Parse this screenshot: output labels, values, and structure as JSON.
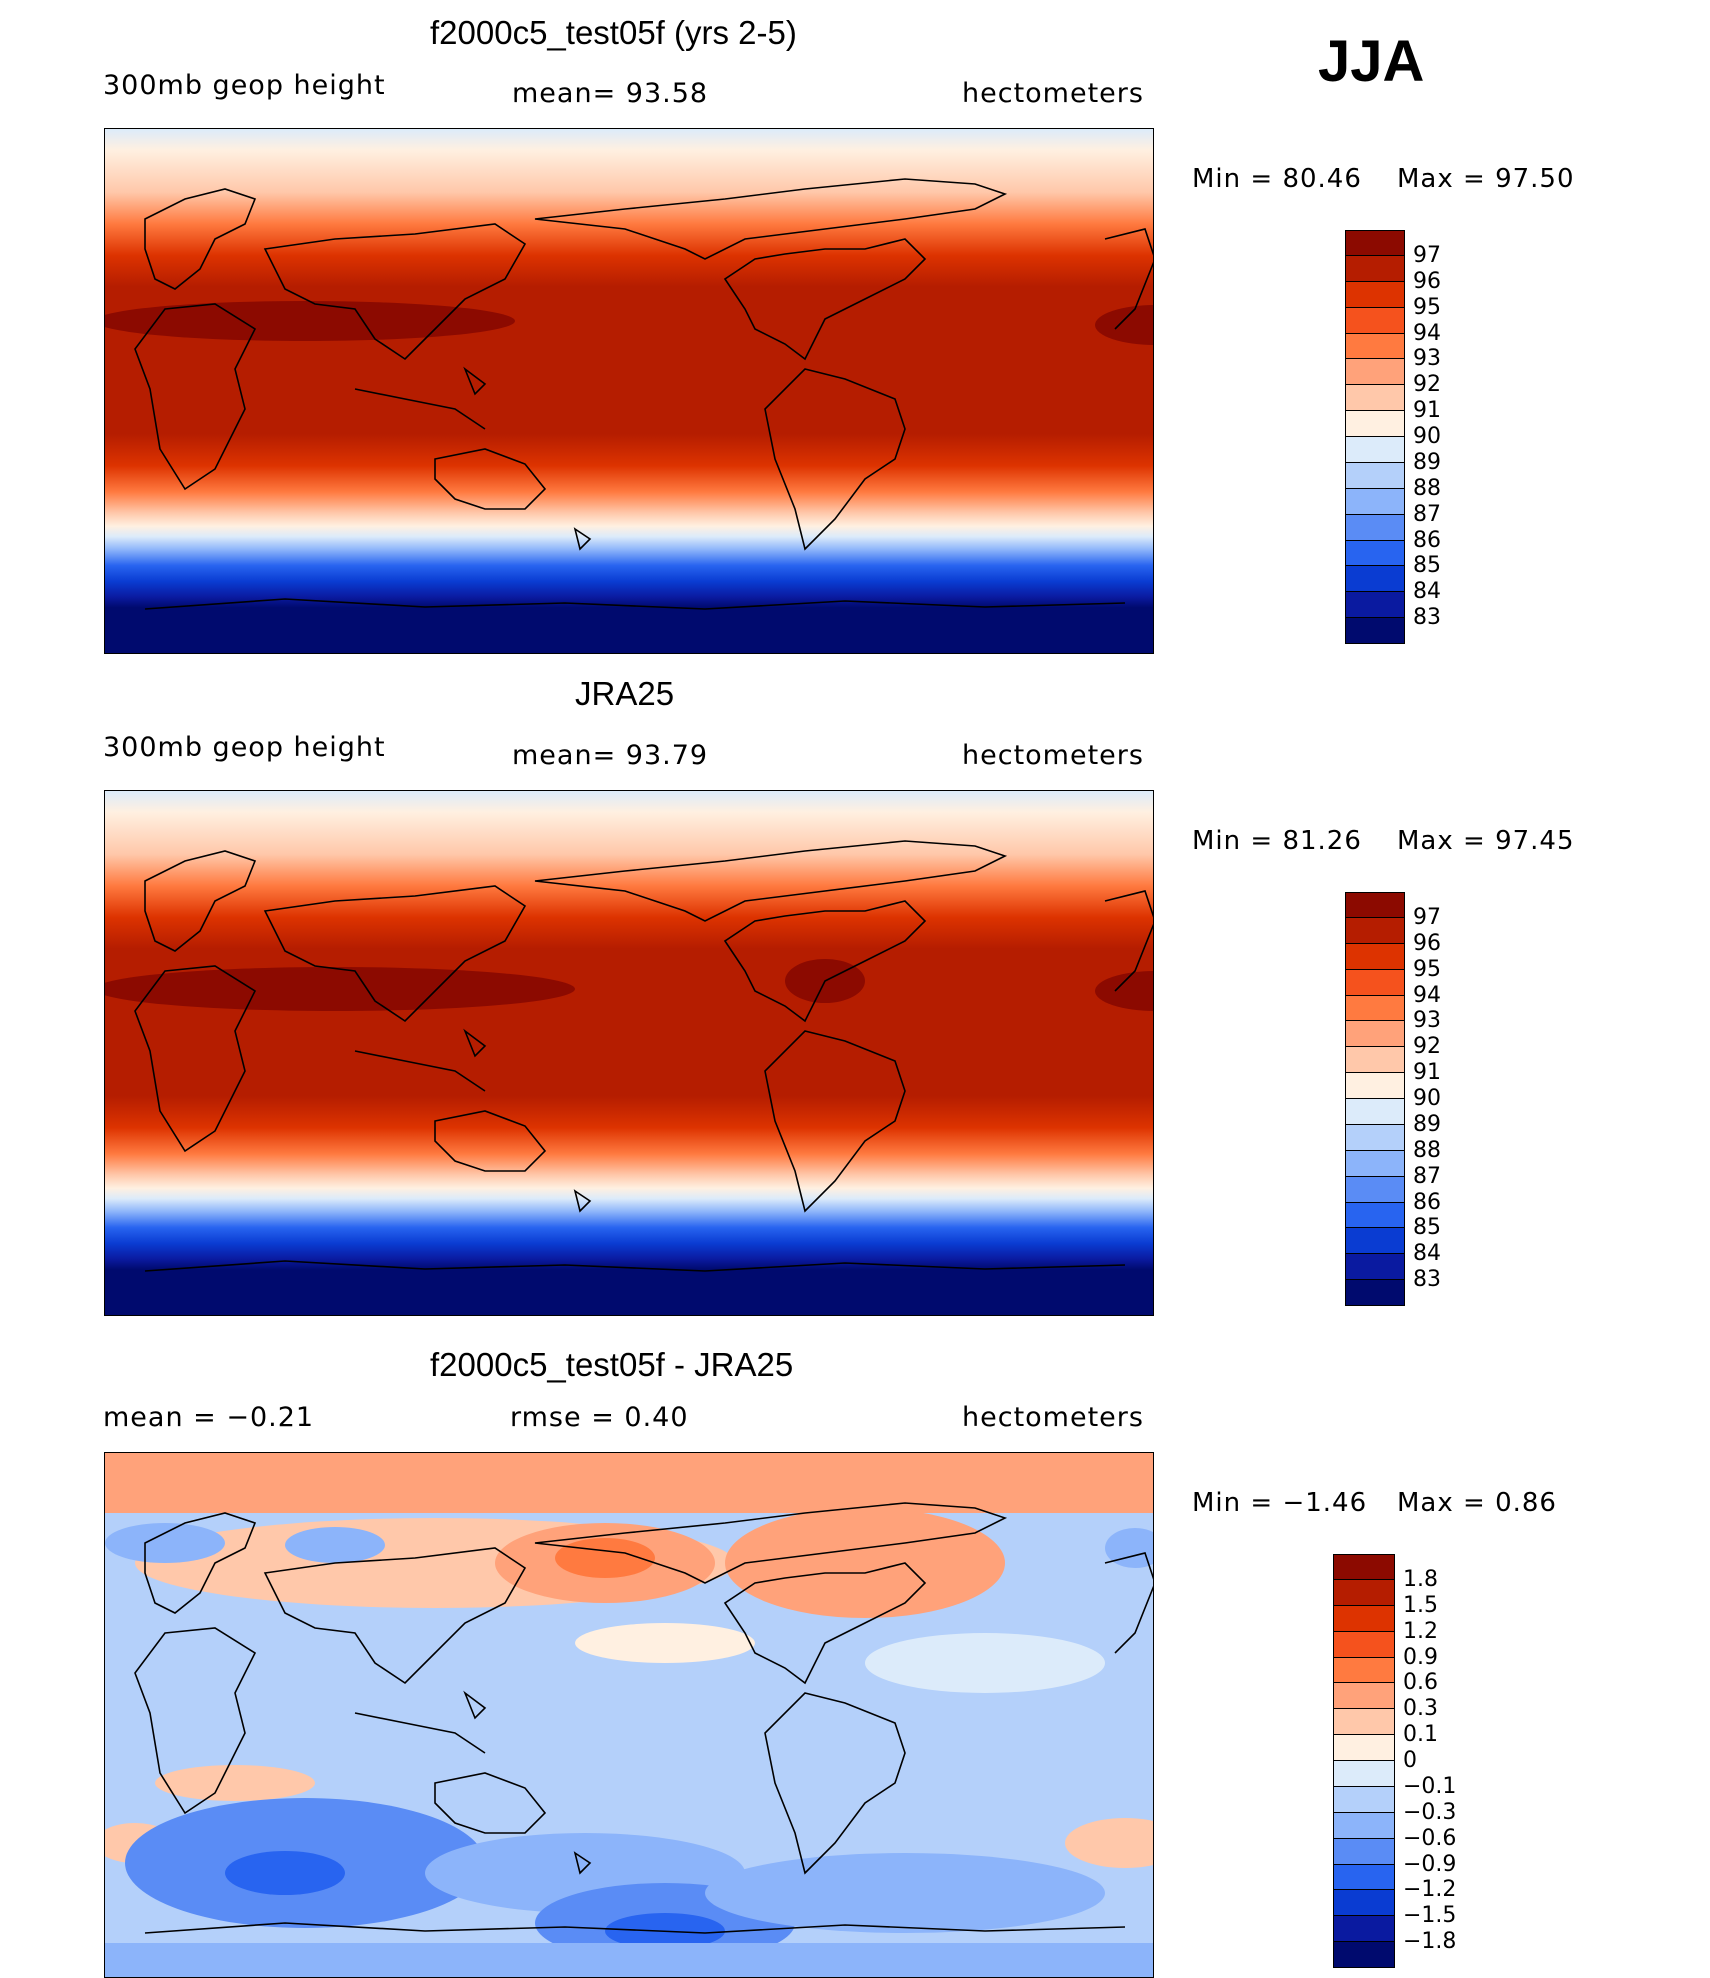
{
  "season": "JJA",
  "panels": [
    {
      "title": "f2000c5_test05f (yrs 2-5)",
      "left_label": "300mb  geop  height",
      "center_label": "mean=   93.58",
      "right_label": "hectometers",
      "min_text": "Min  =    80.46",
      "max_text": "Max  =    97.50",
      "colorbar": {
        "labels": [
          "97",
          "96",
          "95",
          "94",
          "93",
          "92",
          "91",
          "90",
          "89",
          "88",
          "87",
          "86",
          "85",
          "84",
          "83"
        ],
        "colors": [
          "#8c0a00",
          "#b51d00",
          "#dd3300",
          "#f5521d",
          "#ff7a40",
          "#ffa27a",
          "#ffc8aa",
          "#fff0e1",
          "#dcebfa",
          "#b4d0fa",
          "#8cb4fa",
          "#5a8cf5",
          "#2864f0",
          "#0a3cd2",
          "#0a1aa0",
          "#000a6e"
        ]
      }
    },
    {
      "title": "JRA25",
      "left_label": "300mb  geop  height",
      "center_label": "mean=   93.79",
      "right_label": "hectometers",
      "min_text": "Min  =    81.26",
      "max_text": "Max  =    97.45",
      "colorbar": {
        "labels": [
          "97",
          "96",
          "95",
          "94",
          "93",
          "92",
          "91",
          "90",
          "89",
          "88",
          "87",
          "86",
          "85",
          "84",
          "83"
        ],
        "colors": [
          "#8c0a00",
          "#b51d00",
          "#dd3300",
          "#f5521d",
          "#ff7a40",
          "#ffa27a",
          "#ffc8aa",
          "#fff0e1",
          "#dcebfa",
          "#b4d0fa",
          "#8cb4fa",
          "#5a8cf5",
          "#2864f0",
          "#0a3cd2",
          "#0a1aa0",
          "#000a6e"
        ]
      }
    },
    {
      "title": "f2000c5_test05f - JRA25",
      "left_label": "mean  =    −0.21",
      "center_label": "rmse  =     0.40",
      "right_label": "hectometers",
      "min_text": "Min  =    −1.46",
      "max_text": "Max  =      0.86",
      "colorbar": {
        "labels": [
          "1.8",
          "1.5",
          "1.2",
          "0.9",
          "0.6",
          "0.3",
          "0.1",
          "0",
          "−0.1",
          "−0.3",
          "−0.6",
          "−0.9",
          "−1.2",
          "−1.5",
          "−1.8"
        ],
        "colors": [
          "#8c0a00",
          "#b51d00",
          "#dd3300",
          "#f5521d",
          "#ff7a40",
          "#ffa27a",
          "#ffc8aa",
          "#fff0e1",
          "#dcebfa",
          "#b4d0fa",
          "#8cb4fa",
          "#5a8cf5",
          "#2864f0",
          "#0a3cd2",
          "#0a1aa0",
          "#000a6e"
        ]
      }
    }
  ]
}
